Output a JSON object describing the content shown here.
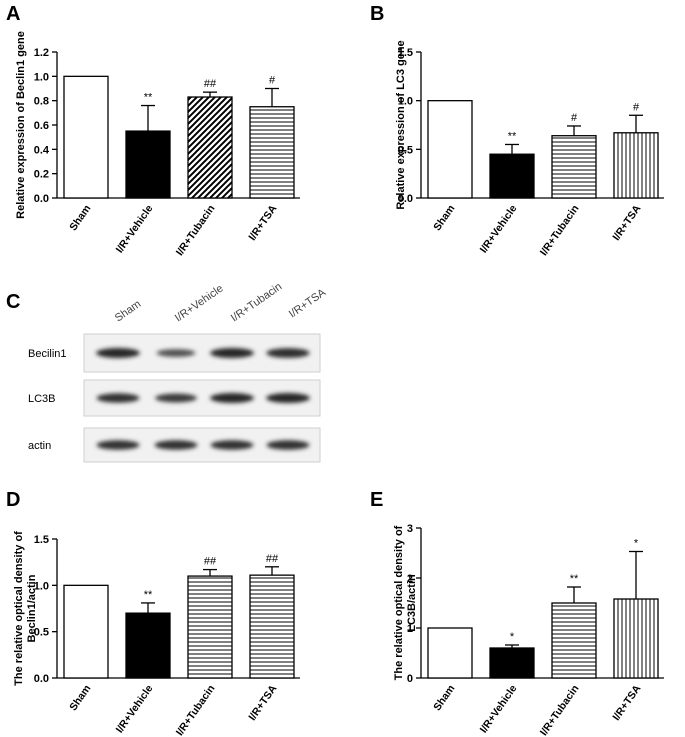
{
  "chart_data": [
    {
      "panel": "A",
      "type": "bar",
      "categories": [
        "Sham",
        "I/R+Vehicle",
        "I/R+Tubacin",
        "I/R+TSA"
      ],
      "values": [
        1.0,
        0.55,
        0.83,
        0.75
      ],
      "errors": [
        0,
        0.21,
        0.04,
        0.15
      ],
      "significance": [
        "",
        "**",
        "##",
        "#"
      ],
      "patterns": [
        "open",
        "solid",
        "diagonal",
        "horizontal"
      ],
      "ylabel": "Relative expression of Beclin1 gene",
      "ylim": [
        0,
        1.2
      ],
      "yticks": [
        "0.0",
        "0.2",
        "0.4",
        "0.6",
        "0.8",
        "1.0",
        "1.2"
      ]
    },
    {
      "panel": "B",
      "type": "bar",
      "categories": [
        "Sham",
        "I/R+Vehicle",
        "I/R+Tubacin",
        "I/R+TSA"
      ],
      "values": [
        1.0,
        0.45,
        0.64,
        0.67
      ],
      "errors": [
        0,
        0.1,
        0.1,
        0.18
      ],
      "significance": [
        "",
        "**",
        "#",
        "#"
      ],
      "patterns": [
        "open",
        "solid",
        "horizontal",
        "vertical"
      ],
      "ylabel": "Relative expression of LC3 gene",
      "ylim": [
        0,
        1.5
      ],
      "yticks": [
        "0.0",
        "0.5",
        "1.0",
        "1.5"
      ]
    },
    {
      "panel": "D",
      "type": "bar",
      "categories": [
        "Sham",
        "I/R+Vehicle",
        "I/R+Tubacin",
        "I/R+TSA"
      ],
      "values": [
        1.0,
        0.7,
        1.1,
        1.11
      ],
      "errors": [
        0,
        0.11,
        0.07,
        0.09
      ],
      "significance": [
        "",
        "**",
        "##",
        "##"
      ],
      "patterns": [
        "open",
        "solid",
        "horizontal",
        "horizontal"
      ],
      "ylabel": "The relative optical density of Beclin1/actin",
      "ylabel_lines": [
        "The relative optical density of",
        "Beclin1/actin"
      ],
      "ylim": [
        0,
        1.5
      ],
      "yticks": [
        "0.0",
        "0.5",
        "1.0",
        "1.5"
      ]
    },
    {
      "panel": "E",
      "type": "bar",
      "categories": [
        "Sham",
        "I/R+Vehicle",
        "I/R+Tubacin",
        "I/R+TSA"
      ],
      "values": [
        1.0,
        0.6,
        1.5,
        1.58
      ],
      "errors": [
        0,
        0.06,
        0.32,
        0.95
      ],
      "significance": [
        "",
        "*",
        "**",
        "*"
      ],
      "patterns": [
        "open",
        "solid",
        "horizontal",
        "vertical"
      ],
      "ylabel": "The relative optical density of LC3B/actin",
      "ylabel_lines": [
        "The relative optical density of",
        "LC3B/actin"
      ],
      "ylim": [
        0,
        3
      ],
      "yticks": [
        "0",
        "1",
        "2",
        "3"
      ]
    }
  ],
  "blot": {
    "panel": "C",
    "lanes": [
      "Sham",
      "I/R+Vehicle",
      "I/R+Tubacin",
      "I/R+TSA"
    ],
    "rows": [
      {
        "label": "Becilin1",
        "intensity": [
          1.0,
          0.55,
          1.0,
          0.95
        ]
      },
      {
        "label": "LC3B",
        "intensity": [
          0.9,
          0.8,
          1.0,
          1.0
        ]
      },
      {
        "label": "actin",
        "intensity": [
          0.9,
          0.9,
          0.9,
          0.9
        ]
      }
    ]
  }
}
